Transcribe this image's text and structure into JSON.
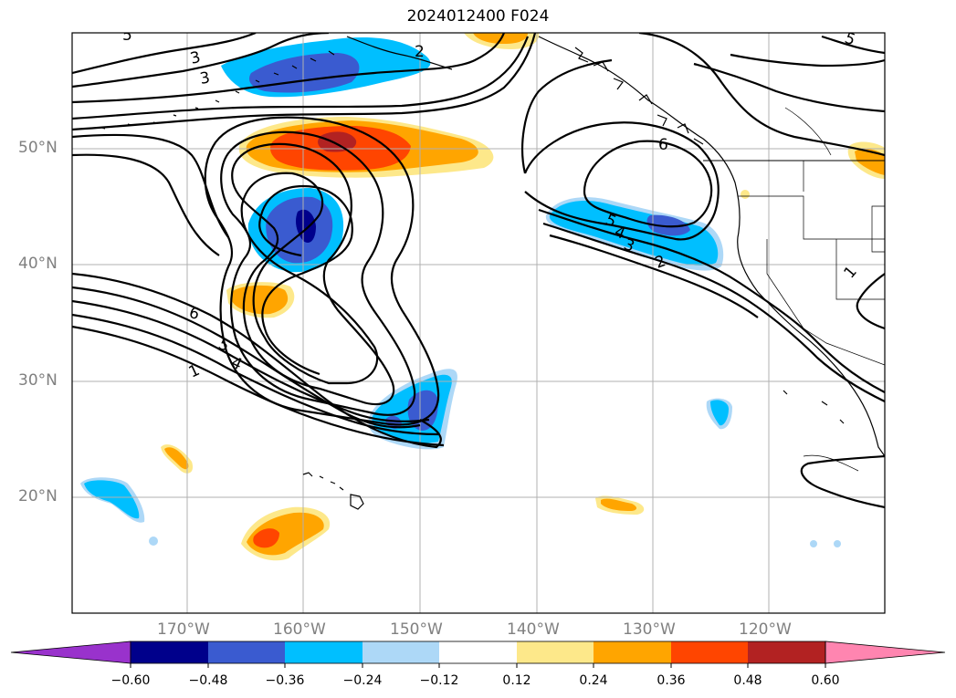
{
  "title": "2024012400 F024",
  "lat_labels": [
    "50°N",
    "40°N",
    "30°N",
    "20°N"
  ],
  "lon_labels": [
    "170°W",
    "160°W",
    "150°W",
    "140°W",
    "130°W",
    "120°W"
  ],
  "contour_labels": [
    "3",
    "3",
    "2",
    "6",
    "5",
    "4",
    "1",
    "6",
    "5",
    "4",
    "3",
    "2",
    "1",
    "5",
    "5"
  ],
  "colorbar": {
    "ticks": [
      "−0.60",
      "−0.48",
      "−0.36",
      "−0.24",
      "−0.12",
      "0.12",
      "0.24",
      "0.36",
      "0.48",
      "0.60"
    ],
    "colors": [
      "#9932cc",
      "#00008b",
      "#3a5bd0",
      "#00bfff",
      "#add8f7",
      "#ffffff",
      "#fde88a",
      "#ffa500",
      "#ff4500",
      "#b22222",
      "#ff85b0"
    ]
  }
}
